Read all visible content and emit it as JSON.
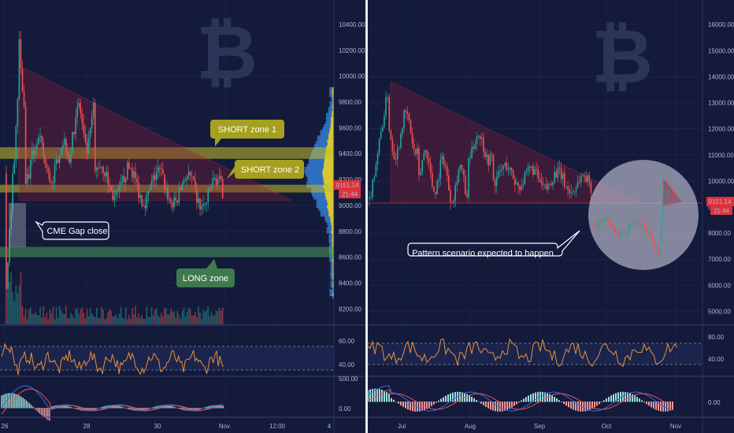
{
  "chart_data": [
    {
      "type": "line",
      "panel": "left",
      "y_ticks": [
        "10400.00",
        "10200.00",
        "10000.00",
        "9800.00",
        "9600.00",
        "9400.00",
        "9200.00",
        "9000.00",
        "8800.00",
        "8600.00",
        "8400.00",
        "8200.00"
      ],
      "y_tick_values": [
        10400,
        10200,
        10000,
        9800,
        9600,
        9400,
        9200,
        9000,
        8800,
        8600,
        8400,
        8200
      ],
      "ylim": [
        8080,
        10540
      ],
      "x_ticks": [
        "26",
        "28",
        "30",
        "Nov",
        "12:00",
        "4"
      ],
      "price_badge": "9151.14",
      "countdown_badge": "21:44",
      "zones": [
        {
          "label": "SHORT zone 1",
          "low": 9360,
          "high": 9450,
          "color": "#c9c02a"
        },
        {
          "label": "SHORT zone 2",
          "low": 9100,
          "high": 9160,
          "color": "#c9c02a"
        },
        {
          "label": "LONG zone",
          "low": 8600,
          "high": 8680,
          "color": "#4a9a5a"
        }
      ],
      "triangle": {
        "apex_high": 10080,
        "base": 9040,
        "color": "#e0303a"
      },
      "annotations": [
        "SHORT zone 1",
        "SHORT zone 2",
        "CME Gap close",
        "LONG zone"
      ],
      "indicators": {
        "rsi_ticks": [
          "60.00",
          "40.00"
        ],
        "macd_ticks": [
          "500.00",
          "0.00"
        ]
      }
    },
    {
      "type": "line",
      "panel": "right",
      "y_ticks": [
        "16000.00",
        "15000.00",
        "14000.00",
        "13000.00",
        "12000.00",
        "11000.00",
        "10000.00",
        "9000.00",
        "8000.00",
        "7000.00",
        "6000.00",
        "5000.00"
      ],
      "y_tick_values": [
        16000,
        15000,
        14000,
        13000,
        12000,
        11000,
        10000,
        9000,
        8000,
        7000,
        6000,
        5000
      ],
      "ylim": [
        4500,
        16700
      ],
      "x_ticks": [
        "Jul",
        "Aug",
        "Sep",
        "Oct",
        "Nov"
      ],
      "price_badge": "9151.14",
      "countdown_badge": "21:44",
      "triangle": {
        "apex_high": 13800,
        "base": 9200,
        "color": "#e0303a"
      },
      "annotations": [
        "Pattern scenario expected to happen"
      ],
      "indicators": {
        "rsi_ticks": [
          "80.00",
          "40.00"
        ],
        "macd_ticks": [
          "0.00"
        ]
      }
    }
  ],
  "colors": {
    "background": "#131a3a",
    "up": "#26a69a",
    "down": "#ef5350",
    "rsi": "#e8913a",
    "triangle": "#e0303a",
    "short_zone": "#c9c02a",
    "long_zone": "#4a9a5a",
    "watermark": "#2c3458"
  },
  "watermark_icon": "bitcoin-icon"
}
